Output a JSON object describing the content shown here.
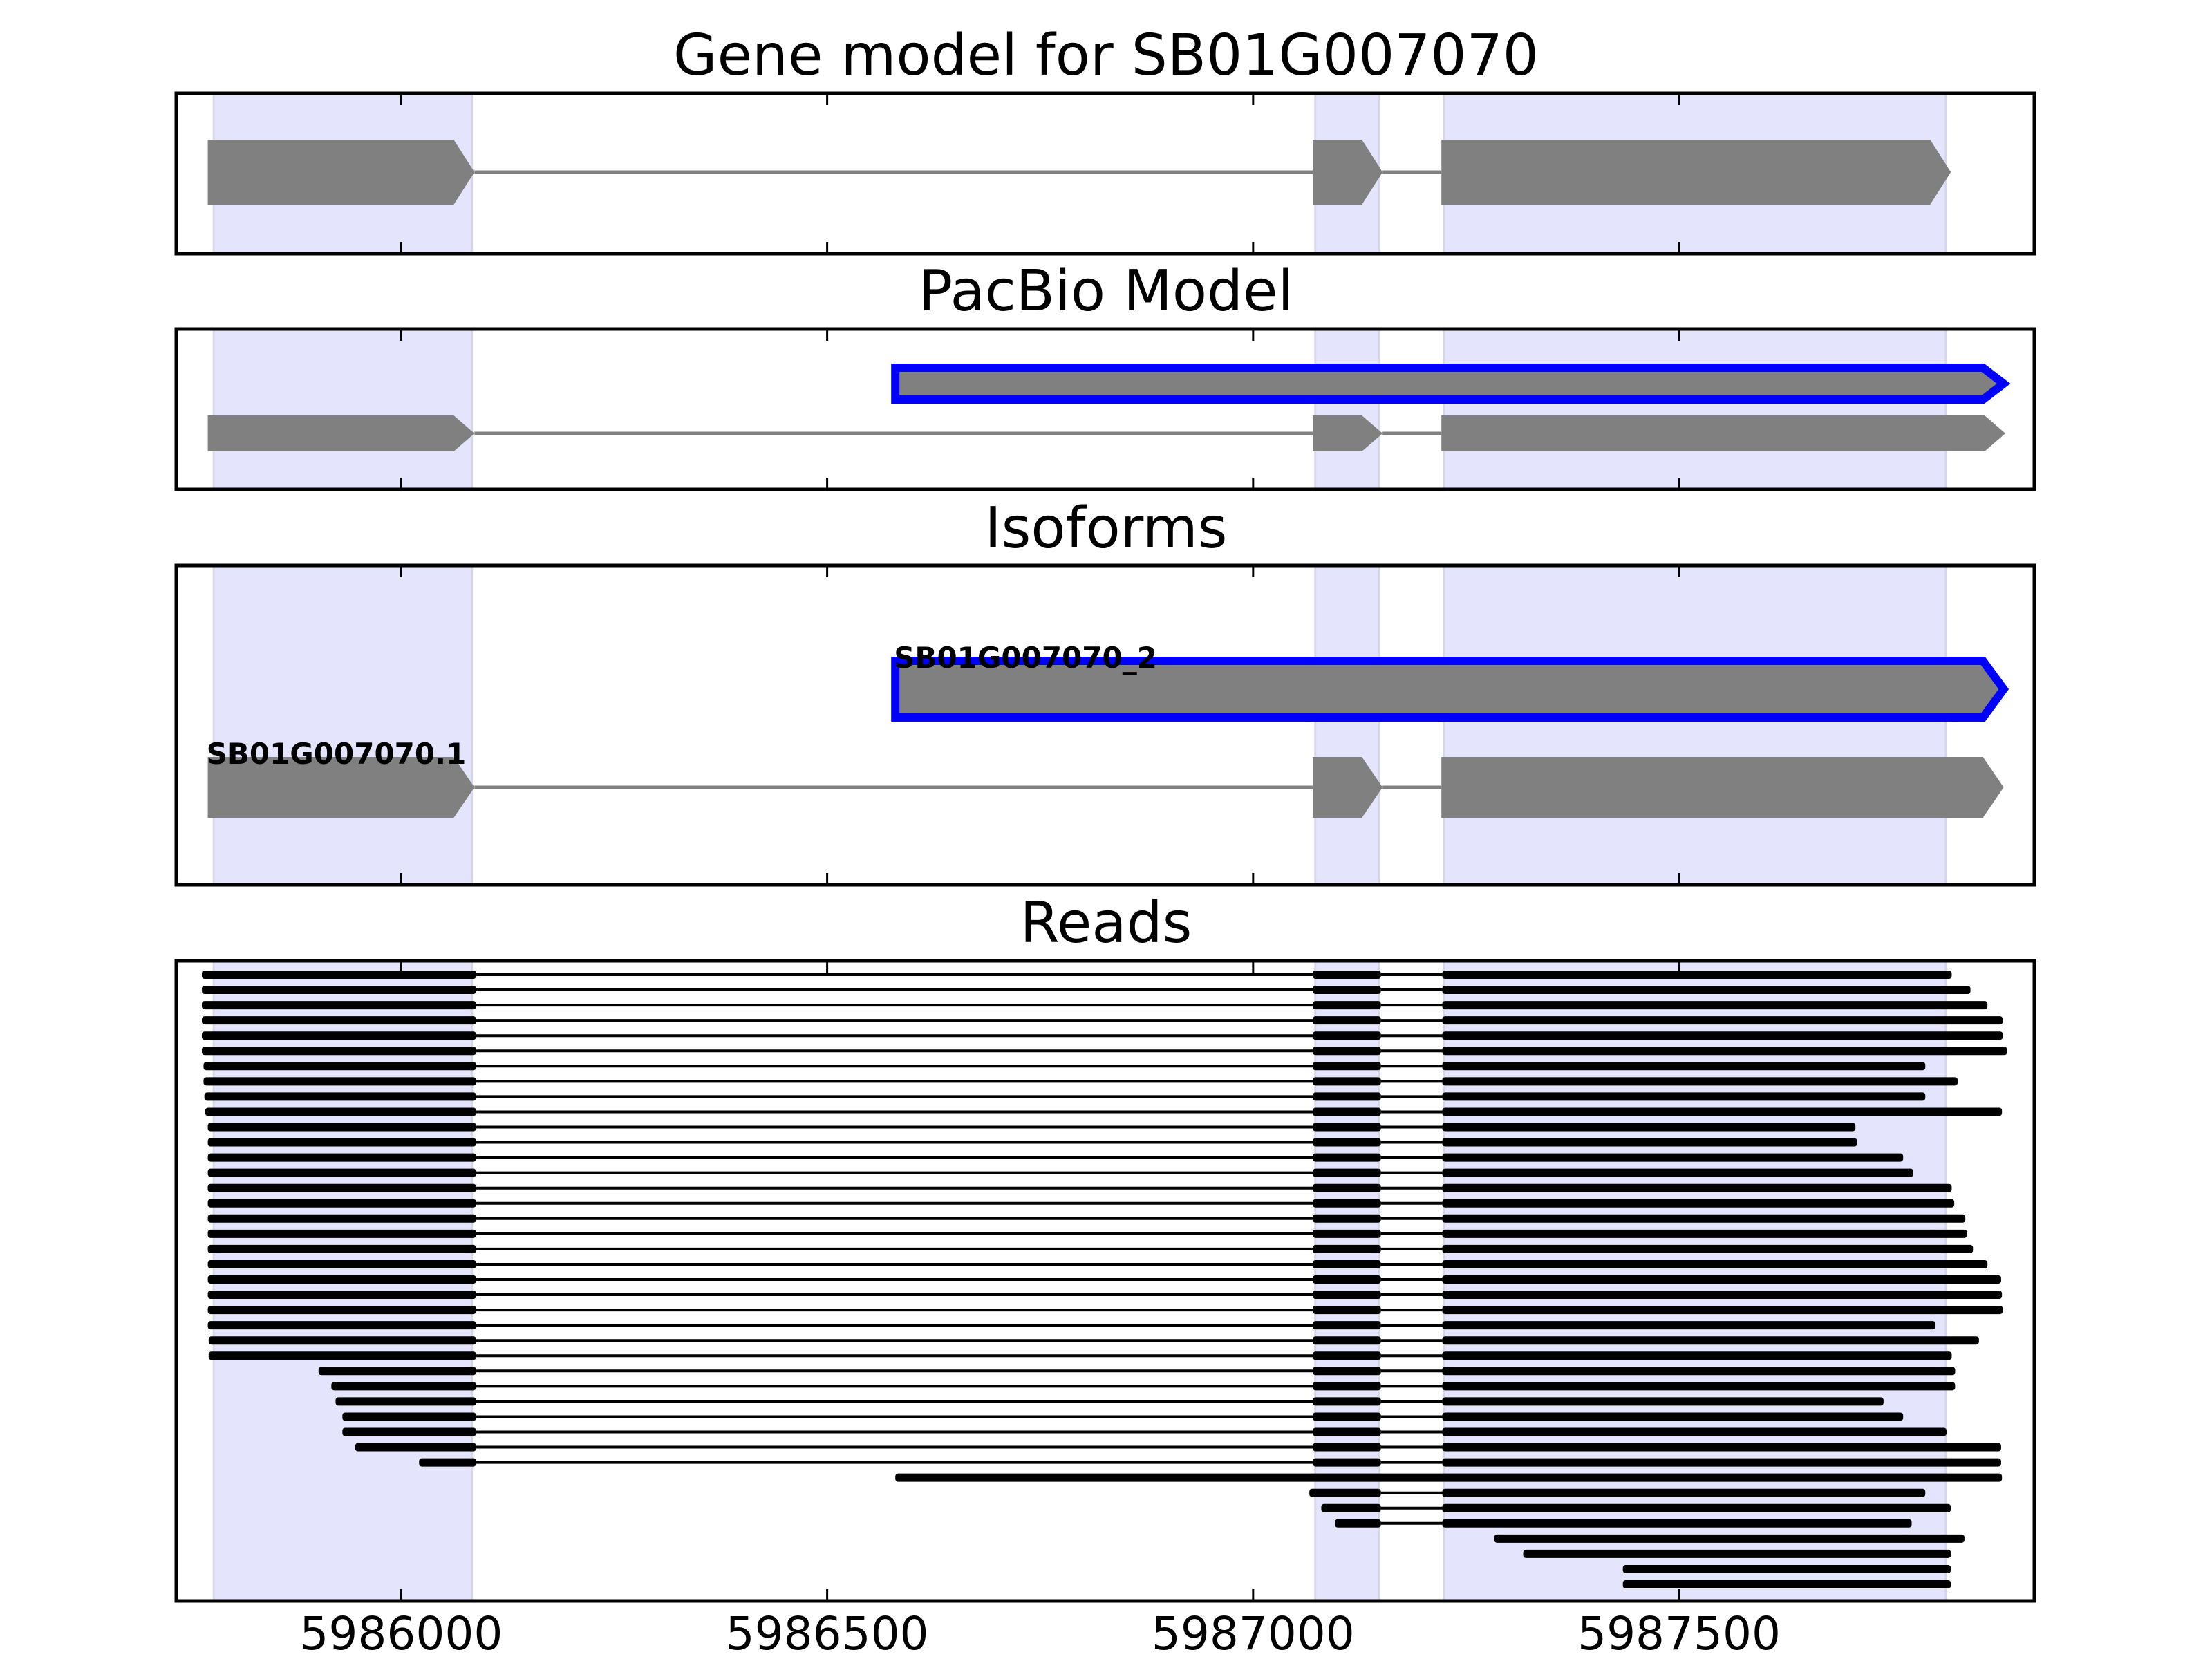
{
  "chart_data": {
    "type": "gene-structure",
    "xlim": [
      5985736,
      5987917
    ],
    "x_ticks": [
      5986000,
      5986500,
      5987000,
      5987500
    ],
    "x_tick_labels": [
      "5986000",
      "5986500",
      "5987000",
      "5987500"
    ],
    "shaded_regions": [
      [
        5985780,
        5986083
      ],
      [
        5987073,
        5987148
      ],
      [
        5987224,
        5987813
      ]
    ],
    "colors": {
      "feature": "#808080",
      "highlight_outline": "#0000ff",
      "shade": "#e4e4fc",
      "read": "#000000"
    },
    "panels": [
      {
        "title": "Gene model for SB01G007070",
        "tracks": [
          {
            "label": "",
            "highlight": false,
            "exons": [
              [
                5985773,
                5986086
              ],
              [
                5987070,
                5987152
              ],
              [
                5987221,
                5987819
              ]
            ]
          }
        ]
      },
      {
        "title": "PacBio Model",
        "tracks": [
          {
            "label": "",
            "highlight": true,
            "exons": [
              [
                5986580,
                5987881
              ]
            ]
          },
          {
            "label": "",
            "highlight": false,
            "exons": [
              [
                5985773,
                5986086
              ],
              [
                5987070,
                5987152
              ],
              [
                5987221,
                5987883
              ]
            ]
          }
        ]
      },
      {
        "title": "Isoforms",
        "tracks": [
          {
            "label": "SB01G007070_2",
            "highlight": true,
            "exons": [
              [
                5986580,
                5987881
              ]
            ]
          },
          {
            "label": "SB01G007070.1",
            "highlight": false,
            "exons": [
              [
                5985773,
                5986086
              ],
              [
                5987070,
                5987152
              ],
              [
                5987221,
                5987881
              ]
            ]
          }
        ]
      }
    ],
    "reads_title": "Reads",
    "reads": [
      [
        [
          5985766,
          5986088
        ],
        [
          5987070,
          5987150
        ],
        [
          5987222,
          5987820
        ]
      ],
      [
        [
          5985766,
          5986088
        ],
        [
          5987070,
          5987150
        ],
        [
          5987222,
          5987842
        ]
      ],
      [
        [
          5985766,
          5986088
        ],
        [
          5987070,
          5987150
        ],
        [
          5987222,
          5987862
        ]
      ],
      [
        [
          5985766,
          5986088
        ],
        [
          5987070,
          5987150
        ],
        [
          5987222,
          5987880
        ]
      ],
      [
        [
          5985766,
          5986088
        ],
        [
          5987070,
          5987150
        ],
        [
          5987222,
          5987880
        ]
      ],
      [
        [
          5985766,
          5986088
        ],
        [
          5987070,
          5987150
        ],
        [
          5987222,
          5987885
        ]
      ],
      [
        [
          5985768,
          5986088
        ],
        [
          5987070,
          5987150
        ],
        [
          5987222,
          5987789
        ]
      ],
      [
        [
          5985768,
          5986088
        ],
        [
          5987070,
          5987150
        ],
        [
          5987222,
          5987827
        ]
      ],
      [
        [
          5985769,
          5986088
        ],
        [
          5987070,
          5987150
        ],
        [
          5987222,
          5987789
        ]
      ],
      [
        [
          5985770,
          5986088
        ],
        [
          5987070,
          5987150
        ],
        [
          5987222,
          5987879
        ]
      ],
      [
        [
          5985773,
          5986088
        ],
        [
          5987070,
          5987150
        ],
        [
          5987222,
          5987707
        ]
      ],
      [
        [
          5985773,
          5986088
        ],
        [
          5987070,
          5987150
        ],
        [
          5987222,
          5987709
        ]
      ],
      [
        [
          5985773,
          5986088
        ],
        [
          5987070,
          5987150
        ],
        [
          5987222,
          5987763
        ]
      ],
      [
        [
          5985773,
          5986088
        ],
        [
          5987070,
          5987150
        ],
        [
          5987222,
          5987775
        ]
      ],
      [
        [
          5985773,
          5986088
        ],
        [
          5987070,
          5987150
        ],
        [
          5987222,
          5987820
        ]
      ],
      [
        [
          5985773,
          5986088
        ],
        [
          5987070,
          5987150
        ],
        [
          5987222,
          5987823
        ]
      ],
      [
        [
          5985773,
          5986088
        ],
        [
          5987070,
          5987150
        ],
        [
          5987222,
          5987836
        ]
      ],
      [
        [
          5985773,
          5986088
        ],
        [
          5987070,
          5987150
        ],
        [
          5987222,
          5987838
        ]
      ],
      [
        [
          5985773,
          5986088
        ],
        [
          5987070,
          5987150
        ],
        [
          5987222,
          5987845
        ]
      ],
      [
        [
          5985773,
          5986088
        ],
        [
          5987070,
          5987150
        ],
        [
          5987222,
          5987862
        ]
      ],
      [
        [
          5985773,
          5986088
        ],
        [
          5987070,
          5987150
        ],
        [
          5987222,
          5987878
        ]
      ],
      [
        [
          5985773,
          5986088
        ],
        [
          5987070,
          5987150
        ],
        [
          5987222,
          5987879
        ]
      ],
      [
        [
          5985773,
          5986088
        ],
        [
          5987070,
          5987150
        ],
        [
          5987222,
          5987880
        ]
      ],
      [
        [
          5985773,
          5986088
        ],
        [
          5987070,
          5987150
        ],
        [
          5987222,
          5987801
        ]
      ],
      [
        [
          5985774,
          5986088
        ],
        [
          5987070,
          5987150
        ],
        [
          5987222,
          5987852
        ]
      ],
      [
        [
          5985774,
          5986088
        ],
        [
          5987070,
          5987150
        ],
        [
          5987222,
          5987820
        ]
      ],
      [
        [
          5985903,
          5986088
        ],
        [
          5987070,
          5987150
        ],
        [
          5987222,
          5987824
        ]
      ],
      [
        [
          5985918,
          5986088
        ],
        [
          5987070,
          5987150
        ],
        [
          5987222,
          5987824
        ]
      ],
      [
        [
          5985923,
          5986088
        ],
        [
          5987070,
          5987150
        ],
        [
          5987222,
          5987740
        ]
      ],
      [
        [
          5985931,
          5986088
        ],
        [
          5987070,
          5987150
        ],
        [
          5987222,
          5987763
        ]
      ],
      [
        [
          5985931,
          5986088
        ],
        [
          5987070,
          5987150
        ],
        [
          5987222,
          5987814
        ]
      ],
      [
        [
          5985946,
          5986088
        ],
        [
          5987070,
          5987150
        ],
        [
          5987222,
          5987878
        ]
      ],
      [
        [
          5986021,
          5986088
        ],
        [
          5987070,
          5987150
        ],
        [
          5987222,
          5987878
        ]
      ],
      [
        [
          5986580,
          5987879
        ]
      ],
      [
        [
          5987066,
          5987150
        ],
        [
          5987222,
          5987789
        ]
      ],
      [
        [
          5987080,
          5987150
        ],
        [
          5987222,
          5987819
        ]
      ],
      [
        [
          5987096,
          5987150
        ],
        [
          5987222,
          5987773
        ]
      ],
      [
        [
          5987283,
          5987835
        ]
      ],
      [
        [
          5987317,
          5987819
        ]
      ],
      [
        [
          5987434,
          5987819
        ]
      ],
      [
        [
          5987434,
          5987819
        ]
      ]
    ]
  }
}
